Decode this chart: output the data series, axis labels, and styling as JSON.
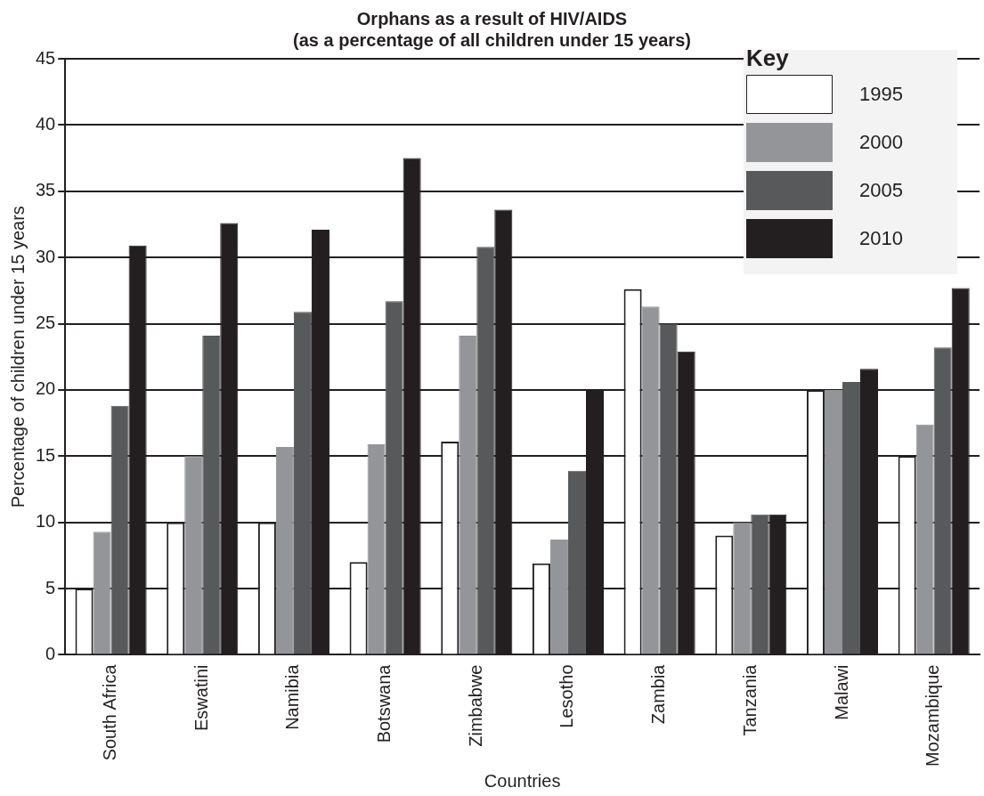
{
  "chart_data": {
    "type": "bar",
    "title": "Orphans as a result of HIV/AIDS\n(as a percentage of all children under 15 years)",
    "xlabel": "Countries",
    "ylabel": "Percentage of children under 15 years",
    "categories": [
      "South Africa",
      "Eswatini",
      "Namibia",
      "Botswana",
      "Zimbabwe",
      "Lesotho",
      "Zambia",
      "Tanzania",
      "Malawi",
      "Mozambique"
    ],
    "series": [
      {
        "name": "1995",
        "color": "#ffffff",
        "values": [
          5,
          10,
          10,
          7,
          16.1,
          6.9,
          27.6,
          9,
          20,
          15
        ]
      },
      {
        "name": "2000",
        "color": "#939598",
        "values": [
          9.3,
          15,
          15.7,
          15.9,
          24.1,
          8.7,
          26.3,
          10,
          20,
          17.4
        ]
      },
      {
        "name": "2005",
        "color": "#58595b",
        "values": [
          18.8,
          24.1,
          25.9,
          26.7,
          30.8,
          13.9,
          25,
          10.6,
          20.6,
          23.2
        ]
      },
      {
        "name": "2010",
        "color": "#231f20",
        "values": [
          30.9,
          32.6,
          32.1,
          37.5,
          33.6,
          20,
          22.9,
          10.6,
          21.6,
          27.7
        ]
      }
    ],
    "ylim": [
      0,
      45
    ],
    "yticks": [
      0,
      5,
      10,
      15,
      20,
      25,
      30,
      35,
      40,
      45
    ],
    "grid": "y",
    "legend": "top right",
    "legend_title": "Key"
  }
}
